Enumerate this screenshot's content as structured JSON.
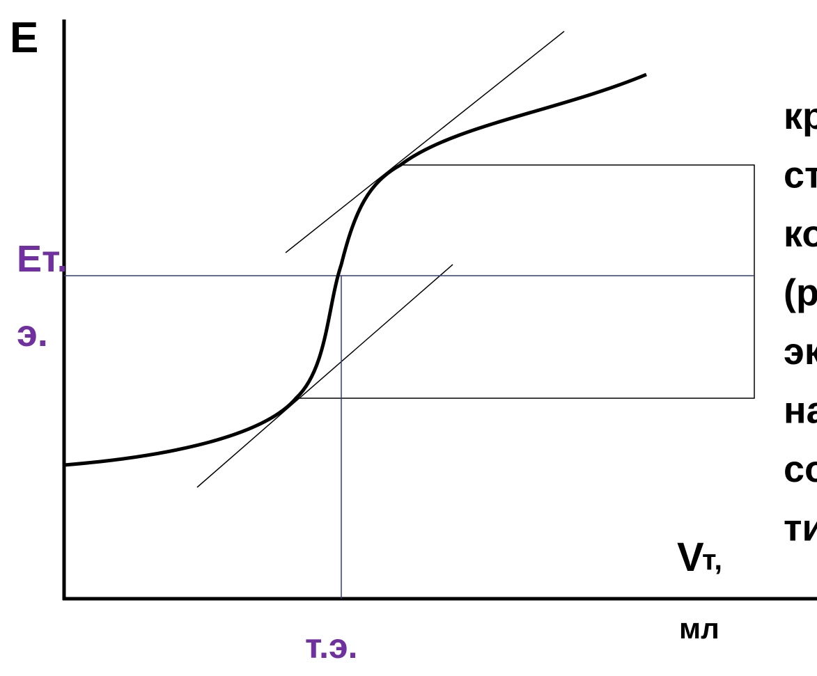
{
  "axis": {
    "y_label": "E",
    "x_label_main": "V",
    "x_label_sub": "т,",
    "x_unit": "мл"
  },
  "markers": {
    "e_eq_line1": "Ет.",
    "e_eq_line2": "э.",
    "eq_point": "т.э."
  },
  "side_text": [
    "кр",
    "ст",
    "ко",
    "(р",
    "эк",
    "на",
    "со",
    "ти"
  ]
}
